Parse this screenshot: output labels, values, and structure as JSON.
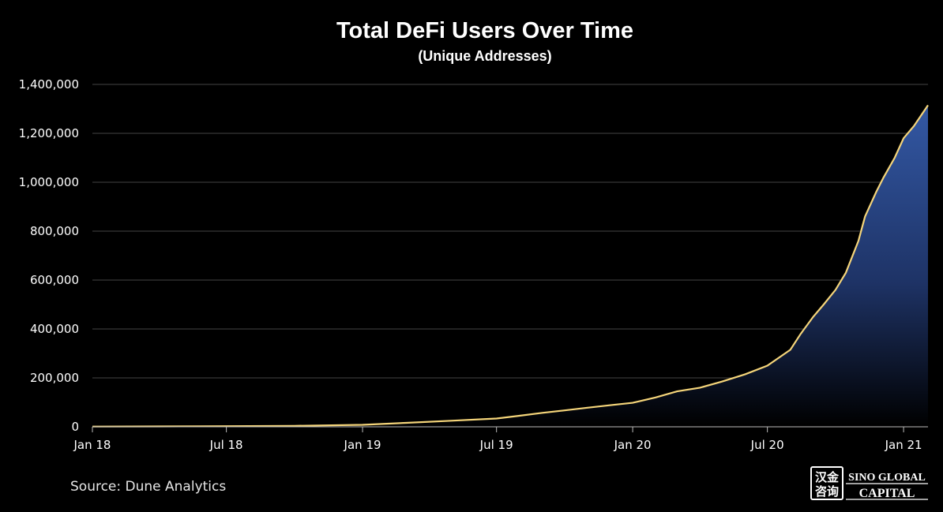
{
  "chart_data": {
    "type": "area",
    "title": "Total DeFi Users Over Time",
    "subtitle": "(Unique Addresses)",
    "xlabel": "",
    "ylabel": "",
    "x_ticks": [
      "Jan 18",
      "Jul 18",
      "Jan 19",
      "Jul 19",
      "Jan 20",
      "Jul 20",
      "Jan 21"
    ],
    "y_ticks": [
      "0",
      "200,000",
      "400,000",
      "600,000",
      "800,000",
      "1,000,000",
      "1,200,000",
      "1,400,000"
    ],
    "ylim": [
      0,
      1400000
    ],
    "xlim": [
      "2018-01-01",
      "2021-02-03"
    ],
    "grid": true,
    "legend": "none",
    "colors": {
      "line": "#f5d57a",
      "fill_top": "#3358a4",
      "fill_bottom": "#000000",
      "grid": "#444444"
    },
    "series": [
      {
        "x": [
          "2018-01-01",
          "2018-04-01",
          "2018-07-01",
          "2018-10-01",
          "2019-01-01",
          "2019-03-01",
          "2019-05-01",
          "2019-07-01",
          "2019-08-01",
          "2019-09-01",
          "2019-10-01",
          "2019-11-01",
          "2019-12-01",
          "2020-01-01",
          "2020-02-01",
          "2020-03-01",
          "2020-04-01",
          "2020-05-01",
          "2020-06-01",
          "2020-07-01",
          "2020-08-01",
          "2020-08-15",
          "2020-09-01",
          "2020-09-15",
          "2020-10-01",
          "2020-10-15",
          "2020-11-01",
          "2020-11-10",
          "2020-11-25",
          "2020-12-05",
          "2020-12-20",
          "2021-01-01",
          "2021-01-15",
          "2021-02-03"
        ],
        "values": [
          1000,
          1500,
          2500,
          4000,
          8000,
          16000,
          25000,
          34000,
          45000,
          57000,
          67000,
          78000,
          88000,
          98000,
          120000,
          145000,
          160000,
          185000,
          215000,
          250000,
          315000,
          380000,
          450000,
          500000,
          560000,
          630000,
          760000,
          860000,
          960000,
          1020000,
          1100000,
          1180000,
          1230000,
          1315000
        ]
      }
    ]
  },
  "source": "Source: Dune Analytics",
  "logo": {
    "chinese_top": "汉金",
    "chinese_bottom": "咨询",
    "line1": "SINO GLOBAL",
    "line2": "CAPITAL"
  }
}
